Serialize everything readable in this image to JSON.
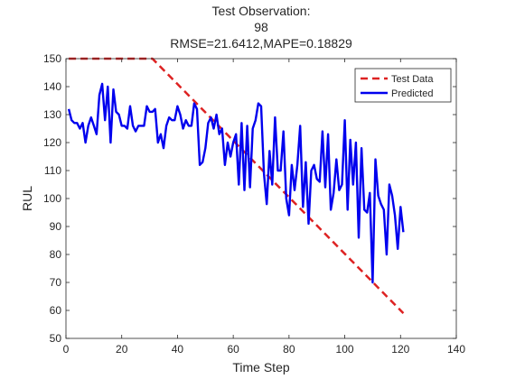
{
  "chart_data": {
    "type": "line",
    "title": [
      "Test Observation:",
      "98",
      "RMSE=21.6412,MAPE=0.18829"
    ],
    "xlabel": "Time Step",
    "ylabel": "RUL",
    "xlim": [
      0,
      140
    ],
    "ylim": [
      50,
      150
    ],
    "xticks": [
      0,
      20,
      40,
      60,
      80,
      100,
      120,
      140
    ],
    "yticks": [
      50,
      60,
      70,
      80,
      90,
      100,
      110,
      120,
      130,
      140,
      150
    ],
    "grid": false,
    "legend_position": "top-right",
    "series": [
      {
        "name": "Test Data",
        "style": "dashed",
        "color": "#dd2222",
        "x": [
          1,
          31,
          121
        ],
        "y": [
          150,
          150,
          59
        ]
      },
      {
        "name": "Predicted",
        "style": "solid",
        "color": "#0000ee",
        "x": [
          1,
          2,
          3,
          4,
          5,
          6,
          7,
          8,
          9,
          10,
          11,
          12,
          13,
          14,
          15,
          16,
          17,
          18,
          19,
          20,
          21,
          22,
          23,
          24,
          25,
          26,
          27,
          28,
          29,
          30,
          31,
          32,
          33,
          34,
          35,
          36,
          37,
          38,
          39,
          40,
          41,
          42,
          43,
          44,
          45,
          46,
          47,
          48,
          49,
          50,
          51,
          52,
          53,
          54,
          55,
          56,
          57,
          58,
          59,
          60,
          61,
          62,
          63,
          64,
          65,
          66,
          67,
          68,
          69,
          70,
          71,
          72,
          73,
          74,
          75,
          76,
          77,
          78,
          79,
          80,
          81,
          82,
          83,
          84,
          85,
          86,
          87,
          88,
          89,
          90,
          91,
          92,
          93,
          94,
          95,
          96,
          97,
          98,
          99,
          100,
          101,
          102,
          103,
          104,
          105,
          106,
          107,
          108,
          109,
          110,
          111,
          112,
          113,
          114,
          115,
          116,
          117,
          118,
          119,
          120,
          121
        ],
        "y": [
          132,
          128,
          127,
          127,
          125,
          127,
          120,
          126,
          129,
          126,
          123,
          137,
          141,
          128,
          140,
          120,
          139,
          131,
          130,
          126,
          126,
          125,
          133,
          126,
          124,
          126,
          126,
          126,
          133,
          131,
          131,
          132,
          120,
          123,
          118,
          126,
          129,
          128,
          128,
          133,
          130,
          125,
          128,
          126,
          126,
          134,
          132,
          112,
          113,
          118,
          127,
          129,
          125,
          130,
          123,
          125,
          112,
          120,
          115,
          120,
          123,
          105,
          127,
          103,
          126,
          104,
          125,
          128,
          134,
          133,
          109,
          98,
          117,
          105,
          129,
          110,
          110,
          124,
          100,
          94,
          112,
          103,
          112,
          126,
          97,
          113,
          91,
          110,
          112,
          107,
          106,
          124,
          104,
          123,
          96,
          102,
          114,
          103,
          105,
          128,
          96,
          121,
          105,
          120,
          86,
          118,
          96,
          95,
          102,
          70,
          114,
          101,
          98,
          96,
          80,
          105,
          101,
          94,
          82,
          97,
          88
        ]
      }
    ]
  }
}
